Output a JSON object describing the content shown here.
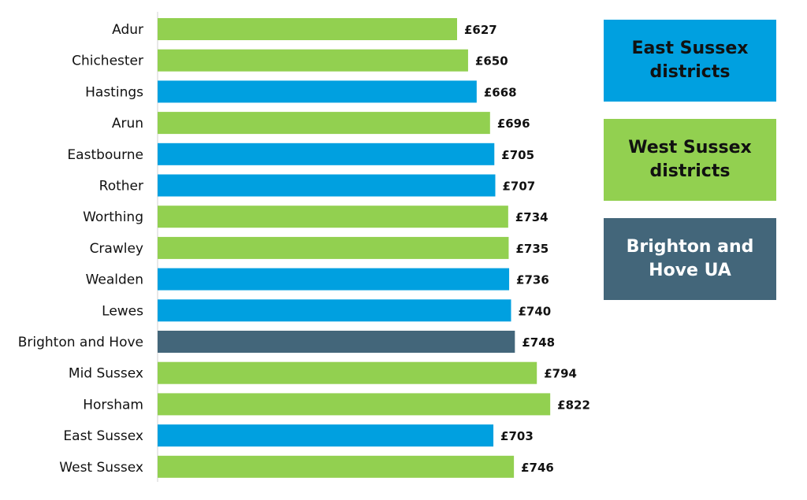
{
  "chart_data": {
    "type": "bar",
    "orientation": "horizontal",
    "categories": [
      "Adur",
      "Chichester",
      "Hastings",
      "Arun",
      "Eastbourne",
      "Rother",
      "Worthing",
      "Crawley",
      "Wealden",
      "Lewes",
      "Brighton and Hove",
      "Mid Sussex",
      "Horsham",
      "East Sussex",
      "West Sussex"
    ],
    "values": [
      627,
      650,
      668,
      696,
      705,
      707,
      734,
      735,
      736,
      740,
      748,
      794,
      822,
      703,
      746
    ],
    "value_labels": [
      "£627",
      "£650",
      "£668",
      "£696",
      "£705",
      "£707",
      "£734",
      "£735",
      "£736",
      "£740",
      "£748",
      "£794",
      "£822",
      "£703",
      "£746"
    ],
    "groups": [
      "west",
      "west",
      "east",
      "west",
      "east",
      "east",
      "west",
      "west",
      "east",
      "east",
      "bh",
      "west",
      "west",
      "east",
      "west"
    ],
    "xlim": [
      0,
      900
    ],
    "grid": false,
    "legend_position": "right",
    "legend": [
      {
        "key": "east",
        "label": "East Sussex districts",
        "color": "#00a0e0",
        "text_color": "#111111"
      },
      {
        "key": "west",
        "label": "West Sussex districts",
        "color": "#92d050",
        "text_color": "#111111"
      },
      {
        "key": "bh",
        "label": "Brighton and Hove UA",
        "color": "#43667a",
        "text_color": "#ffffff"
      }
    ]
  }
}
